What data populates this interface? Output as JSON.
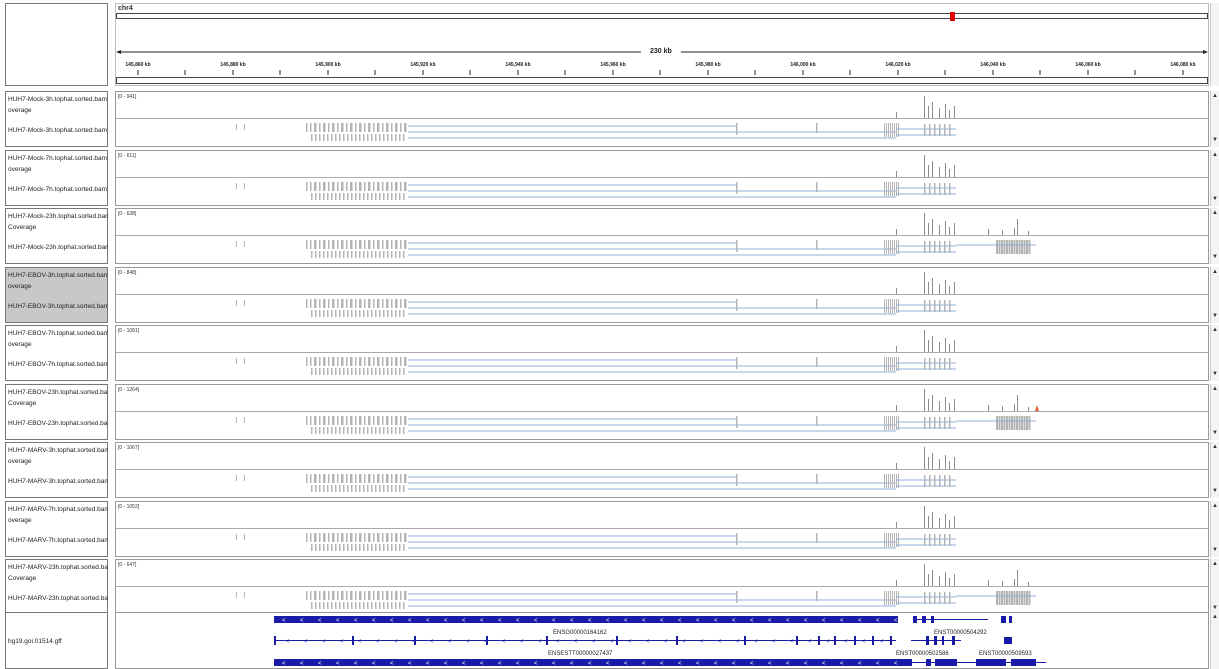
{
  "ruler": {
    "chromosome": "chr4",
    "span_label": "230 kb",
    "ticks": [
      "145,860 kb",
      "145,880 kb",
      "145,900 kb",
      "145,920 kb",
      "145,940 kb",
      "145,960 kb",
      "145,980 kb",
      "146,000 kb",
      "146,020 kb",
      "146,040 kb",
      "146,060 kb",
      "146,080 kb"
    ]
  },
  "tracks": [
    {
      "coverage_label": "HUH7-Mock-3h.tophat.sorted.bam",
      "coverage_suffix": "overage",
      "reads_label": "HUH7-Mock-3h.tophat.sorted.bam",
      "range": "[0 - 941]",
      "selected": false
    },
    {
      "coverage_label": "HUH7-Mock-7h.tophat.sorted.bam",
      "coverage_suffix": "overage",
      "reads_label": "HUH7-Mock-7h.tophat.sorted.bam",
      "range": "[0 - 611]",
      "selected": false
    },
    {
      "coverage_label": "HUH7-Mock-23h.tophat.sorted.bam",
      "coverage_suffix": "Coverage",
      "reads_label": "HUH7-Mock-23h.tophat.sorted.bam",
      "range": "[0 - 638]",
      "selected": false
    },
    {
      "coverage_label": "HUH7-EBOV-3h.tophat.sorted.bam",
      "coverage_suffix": "overage",
      "reads_label": "HUH7-EBOV-3h.tophat.sorted.bam",
      "range": "[0 - 848]",
      "selected": true
    },
    {
      "coverage_label": "HUH7-EBOV-7h.tophat.sorted.bam",
      "coverage_suffix": "overage",
      "reads_label": "HUH7-EBOV-7h.tophat.sorted.bam",
      "range": "[0 - 1081]",
      "selected": false
    },
    {
      "coverage_label": "HUH7-EBOV-23h.tophat.sorted.ba",
      "coverage_suffix": "Coverage",
      "reads_label": "HUH7-EBOV-23h.tophat.sorted.ba",
      "range": "[0 - 1264]",
      "selected": false
    },
    {
      "coverage_label": "HUH7-MARV-3h.tophat.sorted.bam",
      "coverage_suffix": "overage",
      "reads_label": "HUH7-MARV-3h.tophat.sorted.bam",
      "range": "[0 - 1067]",
      "selected": false
    },
    {
      "coverage_label": "HUH7-MARV-7h.tophat.sorted.bam",
      "coverage_suffix": "overage",
      "reads_label": "HUH7-MARV-7h.tophat.sorted.bam",
      "range": "[0 - 1052]",
      "selected": false
    },
    {
      "coverage_label": "HUH7-MARV-23h.tophat.sorted.ba",
      "coverage_suffix": "Coverage",
      "reads_label": "HUH7-MARV-23h.tophat.sorted.ba",
      "range": "[0 - 647]",
      "selected": false
    }
  ],
  "annotation_track": {
    "label": "hg19.goi.01514.gff",
    "feature_labels": [
      "ENSG00000164162",
      "ENST00000504292",
      "ENSESTT00000027437",
      "ENST00000502586",
      "ENST00000509593"
    ]
  },
  "colors": {
    "accent": "#1a1aa8",
    "coverage": "#8c8c8c",
    "reads": "#b4b4b4",
    "junction": "#8fb0d8",
    "locus": "#e00000"
  },
  "icons": {
    "scroll_up": "▲",
    "scroll_down": "▼"
  }
}
